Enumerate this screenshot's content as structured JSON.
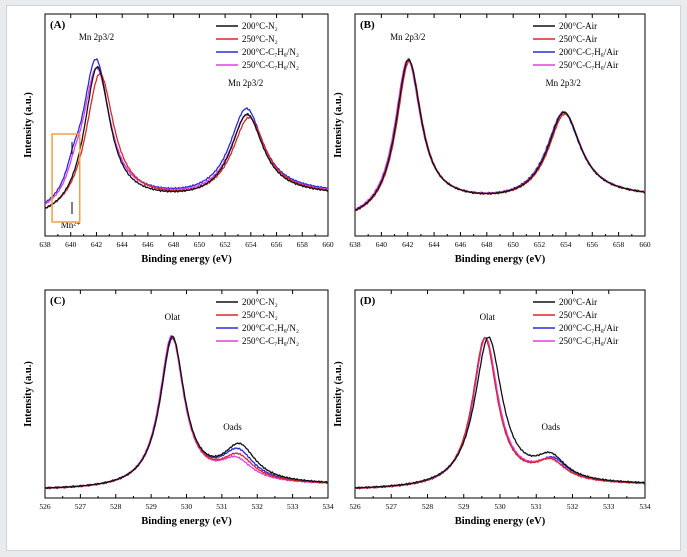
{
  "figure": {
    "colors": {
      "black": "#111111",
      "red": "#d42a2a",
      "blue": "#2b2bd6",
      "magenta": "#e43fe4",
      "orange_box": "#f0a040"
    }
  },
  "chart_data": [
    {
      "panel": "(A)",
      "type": "line",
      "xlabel": "Binding energy (eV)",
      "ylabel": "Intensity (a.u.)",
      "xlim": [
        638,
        660
      ],
      "xticks": [
        638,
        640,
        642,
        644,
        646,
        648,
        650,
        652,
        654,
        656,
        658,
        660
      ],
      "grid": false,
      "legend_placement": "top-right",
      "annotations": [
        {
          "text": "Mn 2p3/2",
          "x": 642.0,
          "y": 1.0
        },
        {
          "text": "Mn 2p3/2",
          "x": 653.6,
          "y": 0.62
        },
        {
          "text": "Mn²⁺",
          "x": 640.0,
          "y": -0.04
        }
      ],
      "series": [
        {
          "name": "200°C-N₂",
          "color": "black",
          "peaks": [
            {
              "c": 642.05,
              "a": 0.8,
              "w": 1.25
            },
            {
              "c": 653.7,
              "a": 0.46,
              "w": 1.55
            }
          ],
          "baseline": 0.05
        },
        {
          "name": "250°C-N₂",
          "color": "red",
          "peaks": [
            {
              "c": 642.25,
              "a": 0.76,
              "w": 1.35
            },
            {
              "c": 653.85,
              "a": 0.44,
              "w": 1.6
            }
          ],
          "baseline": 0.05
        },
        {
          "name": "200°C-C₇H₈/N₂",
          "color": "blue",
          "peaks": [
            {
              "c": 641.95,
              "a": 0.82,
              "w": 1.3
            },
            {
              "c": 653.65,
              "a": 0.48,
              "w": 1.6
            },
            {
              "c": 640.2,
              "a": 0.1,
              "w": 0.7
            }
          ],
          "baseline": 0.06
        },
        {
          "name": "250°C-C₇H₈/N₂",
          "color": "magenta",
          "peaks": [
            {
              "c": 642.0,
              "a": 0.78,
              "w": 1.35
            },
            {
              "c": 653.7,
              "a": 0.45,
              "w": 1.6
            },
            {
              "c": 640.3,
              "a": 0.08,
              "w": 0.7
            }
          ],
          "baseline": 0.055
        }
      ]
    },
    {
      "panel": "(B)",
      "type": "line",
      "xlabel": "Binding energy (eV)",
      "ylabel": "Intensity (a.u.)",
      "xlim": [
        638,
        660
      ],
      "xticks": [
        638,
        640,
        642,
        644,
        646,
        648,
        650,
        652,
        654,
        656,
        658,
        660
      ],
      "grid": false,
      "legend_placement": "top-right",
      "annotations": [
        {
          "text": "Mn 2p3/2",
          "x": 642.0,
          "y": 1.0
        },
        {
          "text": "Mn 2p3/2",
          "x": 653.8,
          "y": 0.6
        }
      ],
      "series": [
        {
          "name": "200°C-Air",
          "color": "black",
          "peaks": [
            {
              "c": 642.05,
              "a": 0.85,
              "w": 1.2
            },
            {
              "c": 653.85,
              "a": 0.48,
              "w": 1.55
            }
          ],
          "baseline": 0.04
        },
        {
          "name": "250°C-Air",
          "color": "red",
          "peaks": [
            {
              "c": 642.1,
              "a": 0.84,
              "w": 1.2
            },
            {
              "c": 653.9,
              "a": 0.47,
              "w": 1.55
            }
          ],
          "baseline": 0.04
        },
        {
          "name": "200°C-C₇H₈/Air",
          "color": "blue",
          "peaks": [
            {
              "c": 642.0,
              "a": 0.85,
              "w": 1.22
            },
            {
              "c": 653.8,
              "a": 0.48,
              "w": 1.58
            }
          ],
          "baseline": 0.04
        },
        {
          "name": "250°C-C₇H₈/Air",
          "color": "magenta",
          "peaks": [
            {
              "c": 642.0,
              "a": 0.85,
              "w": 1.22
            },
            {
              "c": 653.85,
              "a": 0.48,
              "w": 1.58
            }
          ],
          "baseline": 0.04
        }
      ]
    },
    {
      "panel": "(C)",
      "type": "line",
      "xlabel": "Binding energy (eV)",
      "ylabel": "Intensity (a.u.)",
      "xlim": [
        526,
        534
      ],
      "xticks": [
        526,
        527,
        528,
        529,
        530,
        531,
        532,
        533,
        534
      ],
      "grid": false,
      "legend_placement": "top-right",
      "annotations": [
        {
          "text": "Olat",
          "x": 529.6,
          "y": 1.0
        },
        {
          "text": "Oads",
          "x": 531.3,
          "y": 0.36
        }
      ],
      "series": [
        {
          "name": "200°C-N₂",
          "color": "black",
          "peaks": [
            {
              "c": 529.6,
              "a": 0.86,
              "w": 0.42
            },
            {
              "c": 531.5,
              "a": 0.2,
              "w": 0.55
            }
          ],
          "baseline": 0.02
        },
        {
          "name": "250°C-N₂",
          "color": "red",
          "peaks": [
            {
              "c": 529.6,
              "a": 0.86,
              "w": 0.42
            },
            {
              "c": 531.45,
              "a": 0.14,
              "w": 0.55
            }
          ],
          "baseline": 0.02
        },
        {
          "name": "200°C-C₇H₈/N₂",
          "color": "blue",
          "peaks": [
            {
              "c": 529.6,
              "a": 0.85,
              "w": 0.42
            },
            {
              "c": 531.45,
              "a": 0.17,
              "w": 0.55
            }
          ],
          "baseline": 0.02
        },
        {
          "name": "250°C-C₇H₈/N₂",
          "color": "magenta",
          "peaks": [
            {
              "c": 529.58,
              "a": 0.87,
              "w": 0.42
            },
            {
              "c": 531.4,
              "a": 0.12,
              "w": 0.55
            }
          ],
          "baseline": 0.02
        }
      ]
    },
    {
      "panel": "(D)",
      "type": "line",
      "xlabel": "Binding energy (eV)",
      "ylabel": "Intensity (a.u.)",
      "xlim": [
        526,
        534
      ],
      "xticks": [
        526,
        527,
        528,
        529,
        530,
        531,
        532,
        533,
        534
      ],
      "grid": false,
      "legend_placement": "top-right",
      "annotations": [
        {
          "text": "Olat",
          "x": 529.65,
          "y": 1.0
        },
        {
          "text": "Oads",
          "x": 531.4,
          "y": 0.3
        }
      ],
      "series": [
        {
          "name": "200°C-Air",
          "color": "black",
          "peaks": [
            {
              "c": 529.68,
              "a": 0.86,
              "w": 0.46
            },
            {
              "c": 531.4,
              "a": 0.13,
              "w": 0.5
            }
          ],
          "baseline": 0.02
        },
        {
          "name": "250°C-Air",
          "color": "red",
          "peaks": [
            {
              "c": 529.58,
              "a": 0.86,
              "w": 0.42
            },
            {
              "c": 531.4,
              "a": 0.11,
              "w": 0.5
            }
          ],
          "baseline": 0.02
        },
        {
          "name": "200°C-C₇H₈/Air",
          "color": "blue",
          "peaks": [
            {
              "c": 529.6,
              "a": 0.86,
              "w": 0.42
            },
            {
              "c": 531.45,
              "a": 0.12,
              "w": 0.5
            }
          ],
          "baseline": 0.02
        },
        {
          "name": "250°C-C₇H₈/Air",
          "color": "magenta",
          "peaks": [
            {
              "c": 529.6,
              "a": 0.86,
              "w": 0.43
            },
            {
              "c": 531.4,
              "a": 0.11,
              "w": 0.5
            }
          ],
          "baseline": 0.02
        }
      ]
    }
  ]
}
